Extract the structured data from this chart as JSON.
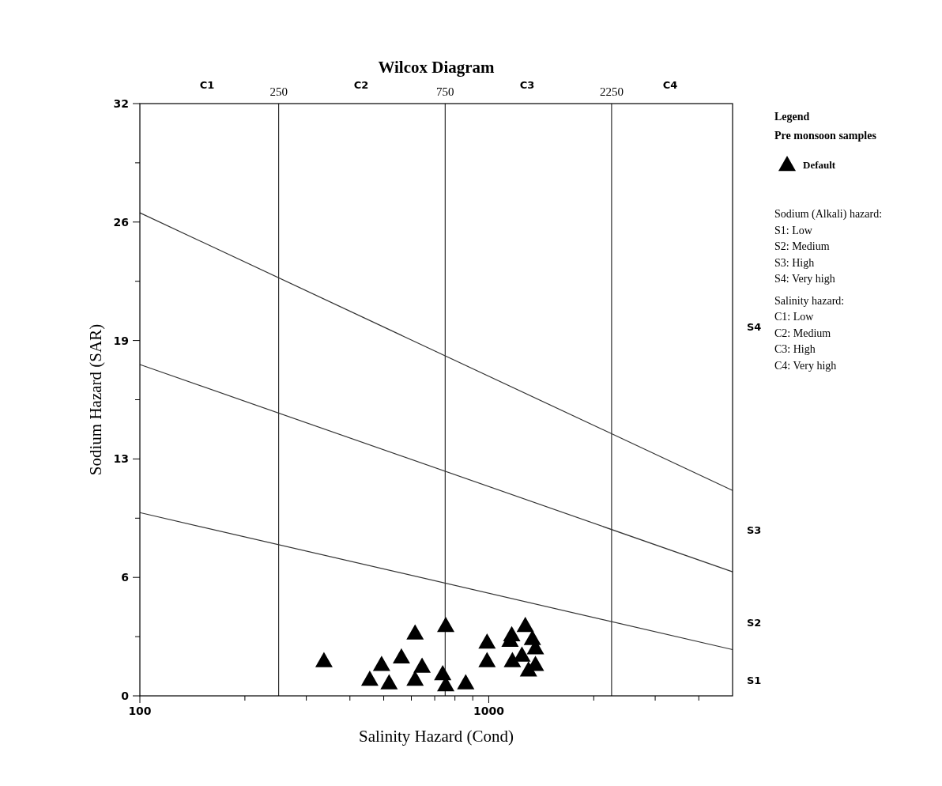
{
  "chart_data": {
    "type": "scatter",
    "title": "Wilcox Diagram",
    "xlabel": "Salinity Hazard (Cond)",
    "ylabel": "Sodium Hazard (SAR)",
    "legend_title": "Legend",
    "log": "x",
    "xlim": [
      100,
      5000
    ],
    "ylim": [
      0,
      32
    ],
    "xticks": [
      100,
      {
        "value": 200,
        "label": null
      },
      {
        "value": 300,
        "label": null
      },
      {
        "value": 400,
        "label": null
      },
      {
        "value": 500,
        "label": null
      },
      {
        "value": 600,
        "label": null
      },
      {
        "value": 700,
        "label": null
      },
      {
        "value": 800,
        "label": null
      },
      {
        "value": 900,
        "label": null
      },
      1000,
      {
        "value": 2000,
        "label": null
      },
      {
        "value": 3000,
        "label": null
      },
      {
        "value": 4000,
        "label": null
      }
    ],
    "yticks": [
      0,
      {
        "value": 3.2,
        "label": null
      },
      {
        "value": 6.4,
        "label": "6"
      },
      {
        "value": 9.6,
        "label": null
      },
      {
        "value": 12.8,
        "label": "13"
      },
      {
        "value": 16,
        "label": null
      },
      {
        "value": 19.2,
        "label": "19"
      },
      {
        "value": 22.4,
        "label": null
      },
      {
        "value": 25.6,
        "label": "26"
      },
      {
        "value": 28.8,
        "label": null
      },
      32
    ],
    "legend": "right",
    "series": [
      {
        "type": "line",
        "color": "#333333",
        "x": [
          100,
          5000
        ],
        "values": [
          26.1,
          11.1
        ]
      },
      {
        "type": "line",
        "color": "#333333",
        "x": [
          100,
          5000
        ],
        "values": [
          17.9,
          6.7
        ]
      },
      {
        "type": "line",
        "color": "#333333",
        "x": [
          100,
          5000
        ],
        "values": [
          9.9,
          2.5
        ]
      },
      {
        "name": "Default",
        "color": "#000000",
        "marker": "triangle",
        "x": [
          337,
          456,
          493,
          518,
          562,
          615,
          615,
          644,
          753,
          738,
          753,
          859,
          989,
          989,
          1164,
          1151,
          1273,
          1334,
          1361,
          1169,
          1245,
          1361,
          1300
        ],
        "values": [
          1.9,
          0.9,
          1.7,
          0.7,
          2.1,
          3.4,
          0.9,
          1.6,
          3.8,
          1.2,
          0.6,
          0.7,
          2.9,
          1.9,
          3.3,
          3.0,
          3.8,
          3.1,
          2.6,
          1.9,
          2.2,
          1.7,
          1.4
        ]
      }
    ],
    "ref_lines": [
      {
        "axis": "x",
        "value": 250,
        "label": "250",
        "color": "#000000"
      },
      {
        "axis": "x",
        "value": 750,
        "label": "750",
        "color": "#000000"
      },
      {
        "axis": "x",
        "value": 2250,
        "label": "2250",
        "color": "#000000"
      }
    ],
    "annotations": [
      "Pre monsoon samples",
      "Sodium (Alkali) hazard:",
      "S1: Low",
      "S2: Medium",
      "S3: High",
      "S4: Very high",
      "Salinity hazard:",
      "C1: Low",
      "C2: Medium",
      "C3: High",
      "C4: Very high",
      "C1",
      "C2",
      "C3",
      "C4",
      "S1",
      "S2",
      "S3",
      "S4"
    ]
  }
}
